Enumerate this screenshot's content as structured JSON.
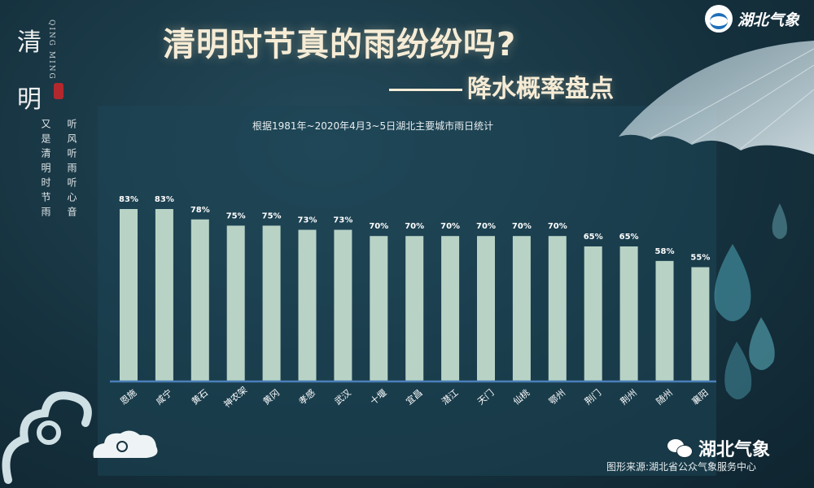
{
  "side": {
    "vertical_title": [
      "清",
      "明"
    ],
    "pinyin": "QING MING",
    "poem_lines": [
      "听风听雨听心音",
      "又是清明时节雨"
    ]
  },
  "header": {
    "title": "清明时节真的雨纷纷吗?",
    "subtitle": "降水概率盘点"
  },
  "brand": {
    "logo_text": "湖北气象",
    "logo_icon": "hubei-weather-logo-icon",
    "wechat_name": "湖北气象",
    "wechat_icon": "wechat-icon",
    "source": "图形来源:湖北省公众气象服务中心"
  },
  "colors": {
    "bar": "#b8d3c6",
    "axis": "#4a7fb8",
    "label": "#ffffff"
  },
  "chart_data": {
    "type": "bar",
    "title": "根据1981年~2020年4月3~5日湖北主要城市雨日统计",
    "xlabel": "",
    "ylabel": "",
    "categories": [
      "恩施",
      "咸宁",
      "黄石",
      "神农架",
      "黄冈",
      "孝感",
      "武汉",
      "十堰",
      "宜昌",
      "潜江",
      "天门",
      "仙桃",
      "鄂州",
      "荆门",
      "荆州",
      "随州",
      "襄阳"
    ],
    "values": [
      83,
      83,
      78,
      75,
      75,
      73,
      73,
      70,
      70,
      70,
      70,
      70,
      70,
      65,
      65,
      58,
      55
    ],
    "value_labels": [
      "83%",
      "83%",
      "78%",
      "75%",
      "75%",
      "73%",
      "73%",
      "70%",
      "70%",
      "70%",
      "70%",
      "70%",
      "70%",
      "65%",
      "65%",
      "58%",
      "55%"
    ],
    "ylim": [
      0,
      100
    ],
    "grid": false,
    "legend": "none"
  }
}
